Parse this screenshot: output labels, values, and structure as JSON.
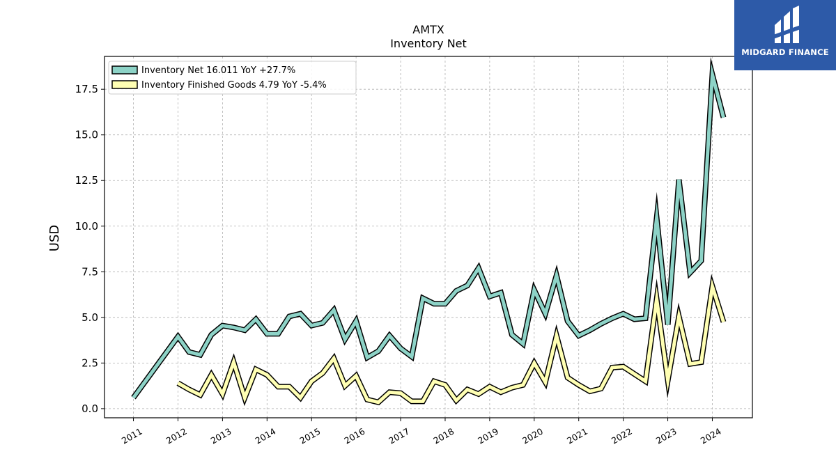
{
  "chart_data": {
    "type": "line",
    "title": "AMTX",
    "subtitle": "Inventory Net",
    "ylabel": "USD",
    "xlabel": "",
    "ylim": [
      -0.5,
      19.3
    ],
    "xlim": [
      2010.35,
      2024.9
    ],
    "grid": true,
    "legend_position": "top-left",
    "y_ticks": [
      0.0,
      2.5,
      5.0,
      7.5,
      10.0,
      12.5,
      15.0,
      17.5
    ],
    "y_tick_labels": [
      "0.0",
      "2.5",
      "5.0",
      "7.5",
      "10.0",
      "12.5",
      "15.0",
      "17.5"
    ],
    "x_ticks": [
      2011,
      2012,
      2013,
      2014,
      2015,
      2016,
      2017,
      2018,
      2019,
      2020,
      2021,
      2022,
      2023,
      2024
    ],
    "x_tick_labels": [
      "2011",
      "2012",
      "2013",
      "2014",
      "2015",
      "2016",
      "2017",
      "2018",
      "2019",
      "2020",
      "2021",
      "2022",
      "2023",
      "2024"
    ],
    "series": [
      {
        "name": "Inventory Net  16.011 YoY +27.7%",
        "color": "#8dd3c7",
        "x": [
          2011.0,
          2012.0,
          2012.25,
          2012.5,
          2012.75,
          2013.0,
          2013.25,
          2013.5,
          2013.75,
          2014.0,
          2014.25,
          2014.5,
          2014.75,
          2015.0,
          2015.25,
          2015.5,
          2015.75,
          2016.0,
          2016.25,
          2016.5,
          2016.75,
          2017.0,
          2017.25,
          2017.5,
          2017.75,
          2018.0,
          2018.25,
          2018.5,
          2018.75,
          2019.0,
          2019.25,
          2019.5,
          2019.75,
          2020.0,
          2020.25,
          2020.5,
          2020.75,
          2021.0,
          2021.25,
          2021.5,
          2021.75,
          2022.0,
          2022.25,
          2022.5,
          2022.75,
          2023.0,
          2023.25,
          2023.5,
          2023.75,
          2024.0,
          2024.25
        ],
        "y": [
          0.6,
          3.95,
          3.1,
          2.95,
          4.05,
          4.55,
          4.45,
          4.3,
          4.9,
          4.1,
          4.1,
          5.05,
          5.2,
          4.55,
          4.7,
          5.4,
          3.8,
          4.8,
          2.8,
          3.15,
          4.0,
          3.3,
          2.85,
          6.05,
          5.75,
          5.75,
          6.45,
          6.75,
          7.7,
          6.15,
          6.35,
          4.05,
          3.55,
          6.5,
          5.2,
          7.3,
          4.8,
          4.0,
          4.3,
          4.65,
          4.95,
          5.2,
          4.9,
          4.95,
          10.45,
          4.6,
          12.55,
          7.45,
          8.1,
          18.3,
          15.95
        ]
      },
      {
        "name": "Inventory Finished Goods  4.79 YoY -5.4%",
        "color": "#ffffb3",
        "x": [
          2012.0,
          2012.25,
          2012.5,
          2012.75,
          2013.0,
          2013.25,
          2013.5,
          2013.75,
          2014.0,
          2014.25,
          2014.5,
          2014.75,
          2015.0,
          2015.25,
          2015.5,
          2015.75,
          2016.0,
          2016.25,
          2016.5,
          2016.75,
          2017.0,
          2017.25,
          2017.5,
          2017.75,
          2018.0,
          2018.25,
          2018.5,
          2018.75,
          2019.0,
          2019.25,
          2019.5,
          2019.75,
          2020.0,
          2020.25,
          2020.5,
          2020.75,
          2021.0,
          2021.25,
          2021.5,
          2021.75,
          2022.0,
          2022.25,
          2022.5,
          2022.75,
          2023.0,
          2023.25,
          2023.5,
          2023.75,
          2024.0,
          2024.25
        ],
        "y": [
          1.4,
          1.05,
          0.75,
          1.85,
          0.8,
          2.55,
          0.6,
          2.15,
          1.85,
          1.2,
          1.2,
          0.6,
          1.5,
          1.95,
          2.75,
          1.25,
          1.8,
          0.5,
          0.35,
          0.9,
          0.85,
          0.4,
          0.4,
          1.5,
          1.3,
          0.45,
          1.05,
          0.8,
          1.2,
          0.9,
          1.15,
          1.3,
          2.5,
          1.45,
          4.0,
          1.7,
          1.3,
          0.95,
          1.1,
          2.25,
          2.3,
          1.9,
          1.5,
          6.0,
          1.55,
          5.05,
          2.45,
          2.55,
          6.7,
          4.75
        ]
      }
    ]
  },
  "logo": {
    "brand": "MIDGARD FINANCE",
    "icon": "midgard-logo-icon",
    "background": "#2d5aa8"
  }
}
